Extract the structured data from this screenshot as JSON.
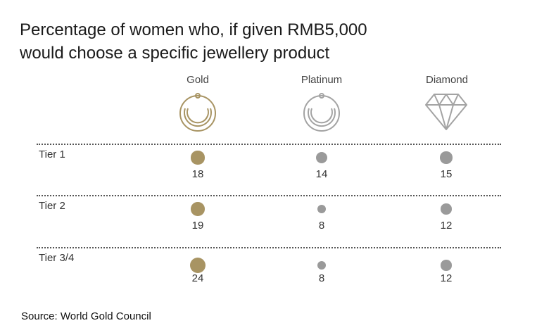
{
  "chart_data": {
    "type": "table",
    "title_lines": [
      "Percentage of women who, if given RMB5,000",
      "would choose a specific jewellery product"
    ],
    "columns": [
      "Gold",
      "Platinum",
      "Diamond"
    ],
    "rows": [
      {
        "label": "Tier 1",
        "values": [
          18,
          14,
          15
        ]
      },
      {
        "label": "Tier 2",
        "values": [
          19,
          8,
          12
        ]
      },
      {
        "label": "Tier 3/4",
        "values": [
          24,
          8,
          12
        ]
      }
    ],
    "colors": {
      "gold": "#a89463",
      "grey": "#9a9a9a"
    },
    "icons": [
      "gold-bangle-icon",
      "platinum-bangle-icon",
      "diamond-icon"
    ]
  },
  "source": "Source: World Gold Council"
}
